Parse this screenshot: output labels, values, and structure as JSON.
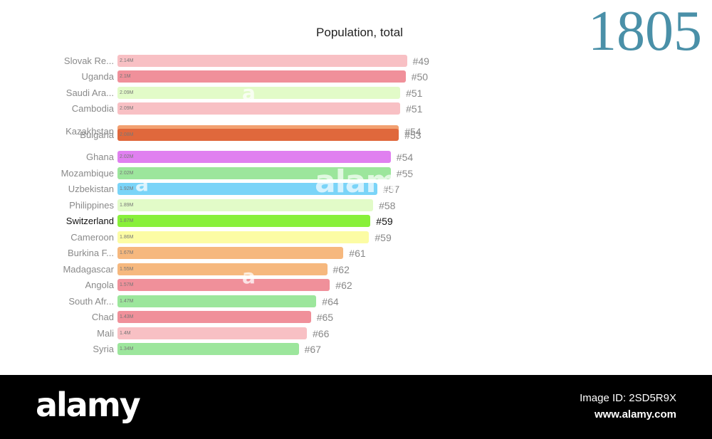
{
  "chart_data": {
    "type": "bar",
    "title": "Population, total",
    "year": "1805",
    "rows": [
      {
        "name": "Slovak Re...",
        "value": 2.14,
        "value_label": "2.14M",
        "rank": "#49",
        "color": "#f8c0c4"
      },
      {
        "name": "Uganda",
        "value": 2.13,
        "value_label": "2.1M",
        "rank": "#50",
        "color": "#f0909a"
      },
      {
        "name": "Saudi Ara...",
        "value": 2.09,
        "value_label": "2.09M",
        "rank": "#51",
        "color": "#e2fbc8"
      },
      {
        "name": "Cambodia",
        "value": 2.09,
        "value_label": "2.09M",
        "rank": "#51",
        "color": "#f8c0c4"
      },
      {
        "name": "Kazakhstan",
        "value": 2.08,
        "value_label": "2.08M",
        "rank": "#54",
        "color": "#f2a070"
      },
      {
        "name": "Bulgaria",
        "value": 2.08,
        "value_label": "2.08M",
        "rank": "#53",
        "color": "#e0683c"
      },
      {
        "name": "Ghana",
        "value": 2.02,
        "value_label": "2.02M",
        "rank": "#54",
        "color": "#e080f0"
      },
      {
        "name": "Mozambique",
        "value": 2.02,
        "value_label": "2.02M",
        "rank": "#55",
        "color": "#9ce69c"
      },
      {
        "name": "Uzbekistan",
        "value": 1.92,
        "value_label": "1.92M",
        "rank": "#57",
        "color": "#7ad4f8"
      },
      {
        "name": "Philippines",
        "value": 1.89,
        "value_label": "1.89M",
        "rank": "#58",
        "color": "#e2fbc8"
      },
      {
        "name": "Switzerland",
        "value": 1.87,
        "value_label": "1.87M",
        "rank": "#59",
        "color": "#88f03a",
        "highlight": true
      },
      {
        "name": "Cameroon",
        "value": 1.86,
        "value_label": "1.86M",
        "rank": "#59",
        "color": "#fcfca4"
      },
      {
        "name": "Burkina F...",
        "value": 1.67,
        "value_label": "1.67M",
        "rank": "#61",
        "color": "#f6b87e"
      },
      {
        "name": "Madagascar",
        "value": 1.55,
        "value_label": "1.55M",
        "rank": "#62",
        "color": "#f6b87e"
      },
      {
        "name": "Angola",
        "value": 1.57,
        "value_label": "1.57M",
        "rank": "#62",
        "color": "#f0909a"
      },
      {
        "name": "South Afr...",
        "value": 1.47,
        "value_label": "1.47M",
        "rank": "#64",
        "color": "#9ce69c"
      },
      {
        "name": "Chad",
        "value": 1.43,
        "value_label": "1.43M",
        "rank": "#65",
        "color": "#f0909a"
      },
      {
        "name": "Mali",
        "value": 1.4,
        "value_label": "1.4M",
        "rank": "#66",
        "color": "#f8c0c4"
      },
      {
        "name": "Syria",
        "value": 1.34,
        "value_label": "1.34M",
        "rank": "#67",
        "color": "#9ce69c"
      }
    ]
  },
  "watermark": {
    "center": "alamy",
    "letter": "a"
  },
  "footer": {
    "logo": "alamy",
    "image_id": "Image ID: 2SD5R9X",
    "url": "www.alamy.com"
  }
}
